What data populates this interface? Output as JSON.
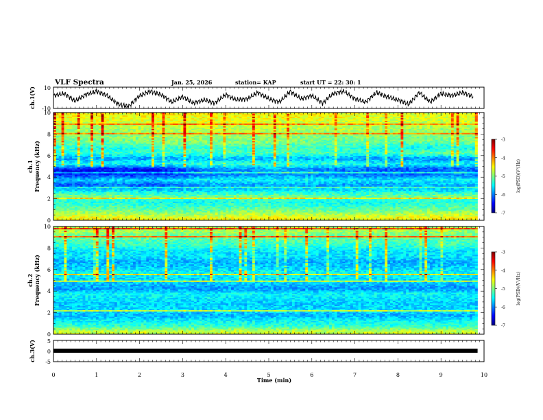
{
  "header": {
    "title": "VLF Spectra",
    "date": "Jan. 25, 2026",
    "station": "station= KAP",
    "start_ut": "start  UT =   22: 30: 1"
  },
  "xaxis": {
    "label": "Time  (min)",
    "range": [
      0,
      10
    ],
    "ticks": [
      "0",
      "1",
      "2",
      "3",
      "4",
      "5",
      "6",
      "7",
      "8",
      "9",
      "10"
    ]
  },
  "colorbar": {
    "label": "log(PSD)(V²/Hz)",
    "ticks": [
      "-3",
      "-4",
      "-5",
      "-6",
      "-7"
    ],
    "range": [
      -7,
      -3
    ],
    "colors": [
      "#00007f",
      "#0000ff",
      "#007fff",
      "#00ffff",
      "#7fff7f",
      "#ffff00",
      "#ff7f00",
      "#ff0000",
      "#7f0000"
    ]
  },
  "chart_data": [
    {
      "type": "line",
      "name": "ch1-waveform",
      "ylabel": "ch.1(V)",
      "ylim": [
        -10,
        10
      ],
      "yticks": [
        "10",
        "-10"
      ],
      "x_range_min": [
        0,
        9.85
      ],
      "x": [
        0,
        0.25,
        0.5,
        0.75,
        1,
        1.25,
        1.5,
        1.75,
        2,
        2.25,
        2.5,
        2.75,
        3,
        3.25,
        3.5,
        3.75,
        4,
        4.25,
        4.5,
        4.75,
        5,
        5.25,
        5.5,
        5.75,
        6,
        6.25,
        6.5,
        6.75,
        7,
        7.25,
        7.5,
        7.75,
        8,
        8.25,
        8.5,
        8.75,
        9,
        9.25,
        9.5,
        9.75
      ],
      "y": [
        2,
        4,
        -3,
        3,
        6,
        2,
        -6,
        -8,
        2,
        6,
        3,
        -4,
        1,
        -5,
        -2,
        -5,
        3,
        -2,
        -1,
        5,
        -1,
        -4,
        6,
        -1,
        2,
        -5,
        4,
        6,
        -1,
        -4,
        5,
        1,
        -2,
        -6,
        5,
        -4,
        4,
        2,
        5,
        1
      ],
      "color": "#000000"
    },
    {
      "type": "heatmap",
      "name": "ch1-spectrogram",
      "ylabel": "ch.1\nFrequency (kHz)",
      "ylabel_lines": [
        "ch.1",
        "Frequency  (kHz)"
      ],
      "ylim": [
        0,
        10
      ],
      "yticks": [
        "0",
        "2",
        "4",
        "6",
        "8",
        "10"
      ],
      "x_range_min": [
        0,
        9.85
      ],
      "value_units": "log(PSD)(V²/Hz)",
      "freq_khz": [
        0.25,
        0.75,
        1.25,
        1.75,
        2.25,
        2.75,
        3.25,
        3.75,
        4.25,
        4.75,
        5.25,
        5.75,
        6.25,
        6.75,
        7.25,
        7.75,
        8.25,
        8.75,
        9.25,
        9.75
      ],
      "time_min": [
        0.5,
        1.5,
        2.5,
        3.5,
        4.5,
        5.5,
        6.5,
        7.5,
        8.5,
        9.5
      ],
      "values": [
        [
          -4.5,
          -4.5,
          -4.6,
          -4.6,
          -4.5,
          -4.5,
          -4.6,
          -4.6,
          -4.5,
          -4.5
        ],
        [
          -4.9,
          -4.9,
          -5.0,
          -5.0,
          -4.9,
          -4.9,
          -5.0,
          -5.0,
          -4.9,
          -4.9
        ],
        [
          -5.2,
          -5.2,
          -5.3,
          -5.3,
          -5.2,
          -5.2,
          -5.3,
          -5.3,
          -5.2,
          -5.2
        ],
        [
          -5.4,
          -5.4,
          -5.5,
          -5.5,
          -5.4,
          -5.4,
          -5.5,
          -5.5,
          -5.4,
          -5.4
        ],
        [
          -5.0,
          -5.0,
          -5.1,
          -5.1,
          -5.0,
          -5.0,
          -5.1,
          -5.1,
          -5.0,
          -5.0
        ],
        [
          -5.6,
          -5.5,
          -5.7,
          -5.6,
          -5.6,
          -5.5,
          -5.6,
          -5.5,
          -5.6,
          -5.6
        ],
        [
          -6.2,
          -6.1,
          -6.2,
          -5.9,
          -5.9,
          -5.8,
          -5.9,
          -5.9,
          -5.8,
          -5.8
        ],
        [
          -5.7,
          -5.6,
          -5.7,
          -5.5,
          -5.5,
          -5.5,
          -5.5,
          -5.6,
          -5.5,
          -5.5
        ],
        [
          -6.4,
          -6.3,
          -6.4,
          -6.0,
          -6.0,
          -5.9,
          -6.0,
          -6.1,
          -6.1,
          -6.0
        ],
        [
          -6.5,
          -6.5,
          -6.5,
          -6.0,
          -5.9,
          -5.8,
          -6.0,
          -6.1,
          -6.2,
          -6.1
        ],
        [
          -5.4,
          -5.4,
          -5.4,
          -5.3,
          -5.3,
          -5.3,
          -5.3,
          -5.5,
          -5.5,
          -5.5
        ],
        [
          -5.9,
          -5.9,
          -5.9,
          -5.8,
          -5.8,
          -5.8,
          -5.8,
          -5.9,
          -5.9,
          -6.0
        ],
        [
          -5.3,
          -5.3,
          -5.3,
          -5.2,
          -5.2,
          -5.2,
          -5.2,
          -5.4,
          -5.1,
          -5.1
        ],
        [
          -5.4,
          -5.4,
          -5.3,
          -5.3,
          -5.3,
          -5.3,
          -5.3,
          -5.4,
          -5.5,
          -5.5
        ],
        [
          -5.1,
          -5.1,
          -5.0,
          -5.0,
          -5.0,
          -5.0,
          -5.1,
          -5.1,
          -5.1,
          -5.1
        ],
        [
          -5.0,
          -5.0,
          -4.9,
          -4.9,
          -4.9,
          -4.9,
          -5.0,
          -5.0,
          -5.0,
          -5.0
        ],
        [
          -4.9,
          -4.9,
          -4.8,
          -4.8,
          -4.8,
          -4.8,
          -4.9,
          -4.9,
          -4.9,
          -4.9
        ],
        [
          -4.8,
          -4.8,
          -4.7,
          -4.7,
          -4.7,
          -4.7,
          -4.8,
          -4.8,
          -4.8,
          -4.8
        ],
        [
          -4.6,
          -4.6,
          -4.6,
          -4.6,
          -4.6,
          -4.6,
          -4.6,
          -4.7,
          -4.7,
          -4.7
        ],
        [
          -4.5,
          -4.5,
          -4.5,
          -4.5,
          -4.5,
          -4.5,
          -4.5,
          -4.6,
          -4.6,
          -4.6
        ]
      ]
    },
    {
      "type": "heatmap",
      "name": "ch2-spectrogram",
      "ylabel": "ch.2\nFrequency (kHz)",
      "ylabel_lines": [
        "ch.2",
        "Frequency  (kHz)"
      ],
      "ylim": [
        0,
        10
      ],
      "yticks": [
        "0",
        "2",
        "4",
        "6",
        "8",
        "10"
      ],
      "x_range_min": [
        0,
        9.85
      ],
      "value_units": "log(PSD)(V²/Hz)",
      "freq_khz": [
        0.25,
        0.75,
        1.25,
        1.75,
        2.25,
        2.75,
        3.25,
        3.75,
        4.25,
        4.75,
        5.25,
        5.75,
        6.25,
        6.75,
        7.25,
        7.75,
        8.25,
        8.75,
        9.25,
        9.75
      ],
      "time_min": [
        0.5,
        1.5,
        2.5,
        3.5,
        4.5,
        5.5,
        6.5,
        7.5,
        8.5,
        9.5
      ],
      "values": [
        [
          -4.7,
          -4.7,
          -4.7,
          -4.7,
          -4.7,
          -4.7,
          -4.7,
          -4.7,
          -4.7,
          -4.7
        ],
        [
          -5.3,
          -5.3,
          -5.3,
          -5.3,
          -5.3,
          -5.3,
          -5.3,
          -5.3,
          -5.3,
          -5.3
        ],
        [
          -5.5,
          -5.5,
          -5.5,
          -5.5,
          -5.5,
          -5.5,
          -5.5,
          -5.5,
          -5.5,
          -5.5
        ],
        [
          -5.8,
          -5.8,
          -5.8,
          -5.8,
          -5.8,
          -5.8,
          -5.8,
          -5.8,
          -5.8,
          -5.8
        ],
        [
          -5.6,
          -5.6,
          -5.6,
          -5.6,
          -5.6,
          -5.6,
          -5.6,
          -5.6,
          -5.6,
          -5.6
        ],
        [
          -5.7,
          -5.7,
          -5.7,
          -5.7,
          -5.7,
          -5.7,
          -5.7,
          -5.7,
          -5.7,
          -5.7
        ],
        [
          -5.6,
          -5.6,
          -5.6,
          -5.6,
          -5.6,
          -5.6,
          -5.6,
          -5.6,
          -5.6,
          -5.6
        ],
        [
          -5.5,
          -5.5,
          -5.5,
          -5.5,
          -5.5,
          -5.5,
          -5.5,
          -5.5,
          -5.5,
          -5.5
        ],
        [
          -5.9,
          -5.9,
          -5.9,
          -5.9,
          -5.9,
          -5.9,
          -5.9,
          -5.9,
          -5.9,
          -5.9
        ],
        [
          -5.7,
          -5.7,
          -5.7,
          -5.7,
          -5.7,
          -5.7,
          -5.7,
          -5.7,
          -5.7,
          -5.7
        ],
        [
          -5.6,
          -5.6,
          -5.6,
          -5.6,
          -5.6,
          -5.6,
          -5.6,
          -5.6,
          -5.6,
          -5.6
        ],
        [
          -5.5,
          -5.5,
          -5.5,
          -5.5,
          -5.5,
          -5.5,
          -5.5,
          -5.5,
          -5.5,
          -5.5
        ],
        [
          -5.7,
          -5.7,
          -5.7,
          -5.7,
          -5.7,
          -5.7,
          -5.7,
          -5.7,
          -5.7,
          -5.7
        ],
        [
          -5.8,
          -5.8,
          -5.8,
          -5.8,
          -5.8,
          -5.8,
          -5.8,
          -5.8,
          -5.8,
          -5.8
        ],
        [
          -5.6,
          -5.6,
          -5.6,
          -5.6,
          -5.6,
          -5.6,
          -5.6,
          -5.6,
          -5.6,
          -5.6
        ],
        [
          -5.6,
          -5.6,
          -5.6,
          -5.6,
          -5.6,
          -5.6,
          -5.6,
          -5.6,
          -5.6,
          -5.6
        ],
        [
          -5.3,
          -5.3,
          -5.3,
          -5.3,
          -5.3,
          -5.3,
          -5.3,
          -5.3,
          -5.3,
          -5.3
        ],
        [
          -5.2,
          -5.2,
          -5.2,
          -5.2,
          -5.2,
          -5.2,
          -5.2,
          -5.2,
          -5.2,
          -5.2
        ],
        [
          -5.0,
          -5.0,
          -5.0,
          -5.0,
          -5.0,
          -5.0,
          -5.0,
          -5.0,
          -5.0,
          -5.0
        ],
        [
          -4.8,
          -4.8,
          -4.8,
          -4.8,
          -4.8,
          -4.8,
          -4.8,
          -4.8,
          -4.8,
          -4.8
        ]
      ]
    },
    {
      "type": "line",
      "name": "ch3-waveform",
      "ylabel": "ch.3(V)",
      "ylim": [
        -5,
        5
      ],
      "yticks": [
        "5",
        "0",
        "-5"
      ],
      "x_range_min": [
        0,
        9.85
      ],
      "x": [
        0,
        9.85
      ],
      "y": [
        0,
        0
      ],
      "color": "#000000"
    }
  ]
}
